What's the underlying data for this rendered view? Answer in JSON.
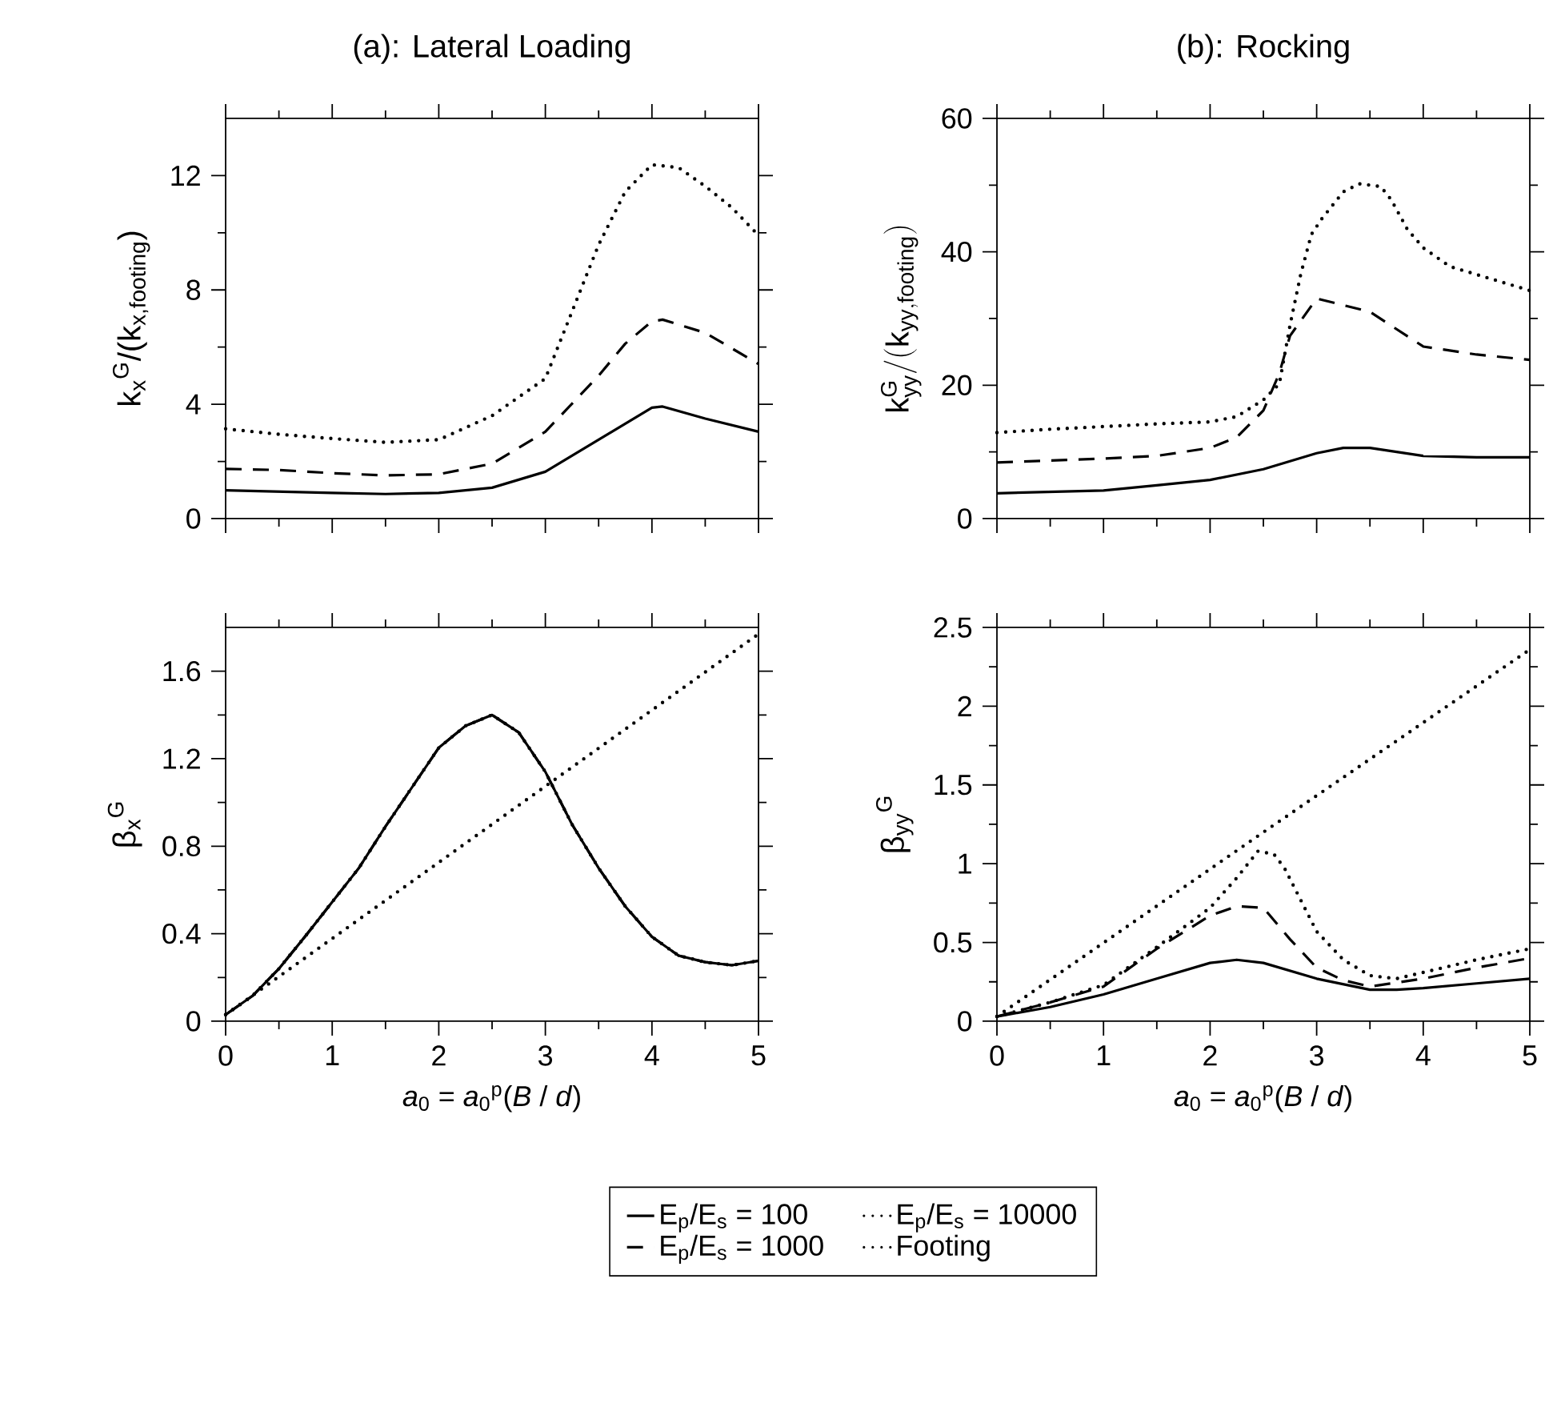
{
  "chart_data": [
    {
      "type": "line",
      "title": "(a): Lateral Loading",
      "ylabel": "k$_{x}$$^{G}$/(k$_{x,footing}$)",
      "xlim": [
        0,
        5
      ],
      "ylim": [
        0,
        14
      ],
      "xticks": [
        0,
        1,
        2,
        3,
        4,
        5
      ],
      "yticks": [
        0,
        4,
        8,
        12
      ],
      "tick_labels": "y",
      "series": [
        {
          "color": "#000000",
          "line_style": "solid",
          "x": [
            0,
            1,
            1.5,
            2,
            2.5,
            3,
            3.5,
            4,
            4.1,
            4.5,
            5
          ],
          "values": [
            0.99,
            0.9,
            0.86,
            0.9,
            1.08,
            1.64,
            2.76,
            3.88,
            3.92,
            3.5,
            3.04
          ]
        },
        {
          "color": "#000000",
          "line_style": "dashed",
          "x": [
            0,
            0.5,
            1,
            1.5,
            2,
            2.5,
            3,
            3.5,
            3.75,
            4,
            4.1,
            4.5,
            5
          ],
          "values": [
            1.74,
            1.7,
            1.59,
            1.51,
            1.55,
            1.92,
            3.04,
            5.0,
            6.12,
            6.9,
            6.96,
            6.5,
            5.41
          ]
        },
        {
          "color": "#000000",
          "line_style": "dotted",
          "x": [
            0,
            0.5,
            1,
            1.5,
            2,
            2.5,
            3,
            3.25,
            3.5,
            3.75,
            4,
            4.25,
            4.5,
            4.75,
            5
          ],
          "values": [
            3.14,
            2.95,
            2.8,
            2.67,
            2.76,
            3.6,
            4.9,
            7.24,
            9.58,
            11.44,
            12.38,
            12.28,
            11.63,
            10.88,
            9.91
          ]
        }
      ]
    },
    {
      "type": "line",
      "title": "(b): Rocking",
      "ylabel": "\\mathrm{k}_{\\mathrm{yy}}^{\\mathrm{G}}/(\\mathrm{k}_{\\mathrm{yy,footing}})",
      "xlim": [
        0,
        5
      ],
      "ylim": [
        0,
        60
      ],
      "xticks": [
        0,
        1,
        2,
        3,
        4,
        5
      ],
      "yticks": [
        0,
        20,
        40,
        60
      ],
      "tick_labels": "y",
      "series": [
        {
          "color": "#000000",
          "line_style": "solid",
          "x": [
            0,
            1,
            1.5,
            2,
            2.5,
            3,
            3.25,
            3.5,
            4,
            4.5,
            5
          ],
          "values": [
            3.8,
            4.2,
            5.0,
            5.8,
            7.4,
            9.8,
            10.6,
            10.6,
            9.4,
            9.2,
            9.2
          ]
        },
        {
          "color": "#000000",
          "line_style": "dashed",
          "x": [
            0,
            1,
            1.5,
            2,
            2.25,
            2.5,
            2.65,
            2.75,
            3,
            3.5,
            4,
            4.5,
            5
          ],
          "values": [
            8.4,
            9.0,
            9.4,
            10.6,
            12.2,
            16.2,
            21.8,
            27.4,
            33,
            31,
            25.8,
            24.6,
            23.8
          ]
        },
        {
          "color": "#000000",
          "line_style": "dotted",
          "x": [
            0,
            0.5,
            1,
            1.5,
            2,
            2.25,
            2.5,
            2.65,
            2.75,
            2.85,
            2.95,
            3.05,
            3.25,
            3.4,
            3.6,
            3.7,
            3.85,
            4,
            4.25,
            4.5,
            5
          ],
          "values": [
            12.9,
            13.4,
            13.8,
            14.2,
            14.5,
            15.3,
            17.8,
            20.2,
            29,
            36.6,
            42.6,
            45,
            49,
            50.2,
            49.8,
            47.8,
            43.4,
            40.6,
            37.8,
            36.6,
            34.2
          ]
        }
      ]
    },
    {
      "type": "line",
      "xlabel": "*a*$_{0}$ = *a*$_{0}$$^{p}$(*B* / *d*)",
      "ylabel": "β$_{x}$$^{G}$",
      "xlim": [
        0,
        5
      ],
      "ylim": [
        0,
        1.8
      ],
      "xticks": [
        0,
        1,
        2,
        3,
        4,
        5
      ],
      "yticks": [
        0,
        0.4,
        0.8,
        1.2,
        1.6
      ],
      "series": [
        {
          "color": "#000000",
          "line_style": "dotted",
          "x": [
            0,
            2.5,
            5
          ],
          "values": [
            0.03,
            0.9,
            1.77
          ]
        },
        {
          "color": "#000000",
          "line_style": "dotted",
          "x": [
            0,
            0.25,
            0.5,
            0.75,
            1,
            1.25,
            1.5,
            1.75,
            2,
            2.25,
            2.5,
            2.75,
            3,
            3.25,
            3.5,
            3.75,
            4,
            4.25,
            4.5,
            4.75,
            5
          ],
          "values": [
            0.03,
            0.115,
            0.24,
            0.39,
            0.545,
            0.7,
            0.89,
            1.07,
            1.25,
            1.35,
            1.4,
            1.32,
            1.14,
            0.9,
            0.7,
            0.525,
            0.386,
            0.3,
            0.27,
            0.256,
            0.276
          ]
        },
        {
          "color": "#000000",
          "line_style": "dashed",
          "x": [
            0,
            0.25,
            0.5,
            0.75,
            1,
            1.25,
            1.5,
            1.75,
            2,
            2.25,
            2.5,
            2.75,
            3,
            3.25,
            3.5,
            3.75,
            4,
            4.25,
            4.5,
            4.75,
            5
          ],
          "values": [
            0.03,
            0.115,
            0.24,
            0.39,
            0.545,
            0.7,
            0.89,
            1.07,
            1.25,
            1.35,
            1.4,
            1.32,
            1.14,
            0.9,
            0.7,
            0.525,
            0.386,
            0.3,
            0.27,
            0.256,
            0.276
          ]
        },
        {
          "color": "#000000",
          "line_style": "solid",
          "x": [
            0,
            0.25,
            0.5,
            0.75,
            1,
            1.25,
            1.5,
            1.75,
            2,
            2.25,
            2.5,
            2.75,
            3,
            3.25,
            3.5,
            3.75,
            4,
            4.25,
            4.5,
            4.75,
            5
          ],
          "values": [
            0.03,
            0.115,
            0.24,
            0.39,
            0.545,
            0.7,
            0.89,
            1.07,
            1.25,
            1.35,
            1.4,
            1.32,
            1.14,
            0.9,
            0.7,
            0.525,
            0.386,
            0.3,
            0.27,
            0.256,
            0.276
          ]
        }
      ]
    },
    {
      "type": "line",
      "xlabel": "*a*$_{0}$ = *a*$_{0}$$^{p}$(*B* / *d*)",
      "ylabel": "β$_{yy}$$^{G}$",
      "xlim": [
        0,
        5
      ],
      "ylim": [
        0,
        2.5
      ],
      "xticks": [
        0,
        1,
        2,
        3,
        4,
        5
      ],
      "yticks": [
        0,
        0.5,
        1,
        1.5,
        2,
        2.5
      ],
      "legend": "bottom",
      "series": [
        {
          "name": "E$_{p}$/E$_{s}$ = 100",
          "color": "#000000",
          "line_style": "solid",
          "x": [
            0,
            0.5,
            1,
            1.5,
            2,
            2.25,
            2.5,
            3,
            3.5,
            3.75,
            4,
            4.5,
            5
          ],
          "values": [
            0.03,
            0.09,
            0.17,
            0.27,
            0.37,
            0.39,
            0.37,
            0.27,
            0.2,
            0.2,
            0.21,
            0.24,
            0.27
          ]
        },
        {
          "name": "E$_{p}$/E$_{s}$ = 1000",
          "color": "#000000",
          "line_style": "dashed",
          "x": [
            0,
            0.5,
            1,
            1.5,
            2,
            2.25,
            2.5,
            2.75,
            3,
            3.25,
            3.5,
            4,
            4.5,
            5
          ],
          "values": [
            0.03,
            0.12,
            0.22,
            0.46,
            0.67,
            0.73,
            0.72,
            0.52,
            0.34,
            0.26,
            0.22,
            0.27,
            0.34,
            0.4
          ]
        },
        {
          "name": "E$_{p}$/E$_{s}$ = 10000",
          "color": "#000000",
          "line_style": "dotted",
          "x": [
            0,
            0.5,
            1,
            1.5,
            2,
            2.25,
            2.45,
            2.6,
            2.7,
            2.85,
            3,
            3.25,
            3.5,
            3.75,
            4,
            4.5,
            5
          ],
          "values": [
            0.03,
            0.12,
            0.23,
            0.47,
            0.72,
            0.91,
            1.08,
            1.06,
            0.97,
            0.77,
            0.57,
            0.39,
            0.29,
            0.27,
            0.31,
            0.39,
            0.46
          ]
        },
        {
          "name": "Footing",
          "color": "#000000",
          "line_style": "dotted",
          "x": [
            0,
            2.5,
            5
          ],
          "values": [
            0.03,
            1.2,
            2.36
          ]
        }
      ]
    }
  ]
}
